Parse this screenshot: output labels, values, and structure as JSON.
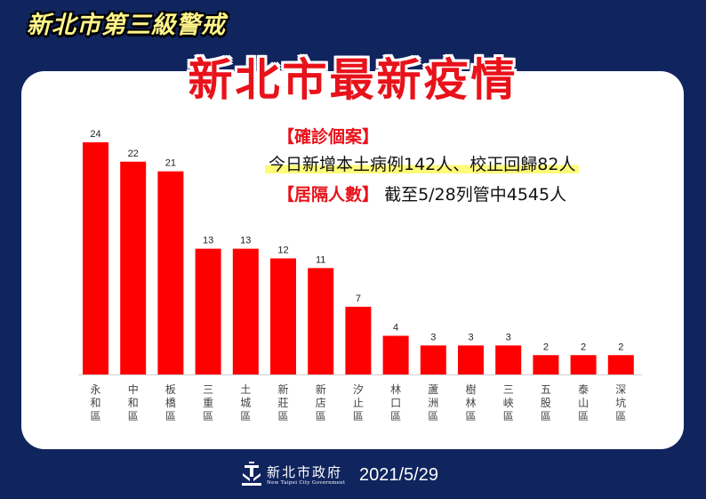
{
  "header": {
    "alert_title": "新北市第三級警戒",
    "main_title": "新北市最新疫情"
  },
  "info": {
    "confirmed_label": "【確診個案】",
    "today_text": "今日新增本土病例142人、校正回歸82人",
    "quarantine_label": "【居隔人數】",
    "quarantine_text": "截至5/28列管中4545人"
  },
  "footer": {
    "gov_name": "新北市政府",
    "gov_name_en": "New Taipei City Government",
    "date": "2021/5/29"
  },
  "colors": {
    "bar": "#ff0000",
    "accent": "#e8121a",
    "background": "#10245e"
  },
  "chart_data": {
    "type": "bar",
    "categories": [
      "永和區",
      "中和區",
      "板橋區",
      "三重區",
      "土城區",
      "新莊區",
      "新店區",
      "汐止區",
      "林口區",
      "蘆洲區",
      "樹林區",
      "三峽區",
      "五股區",
      "泰山區",
      "深坑區"
    ],
    "values": [
      24,
      22,
      21,
      13,
      13,
      12,
      11,
      7,
      4,
      3,
      3,
      3,
      2,
      2,
      2
    ],
    "ylim": [
      0,
      24
    ]
  }
}
